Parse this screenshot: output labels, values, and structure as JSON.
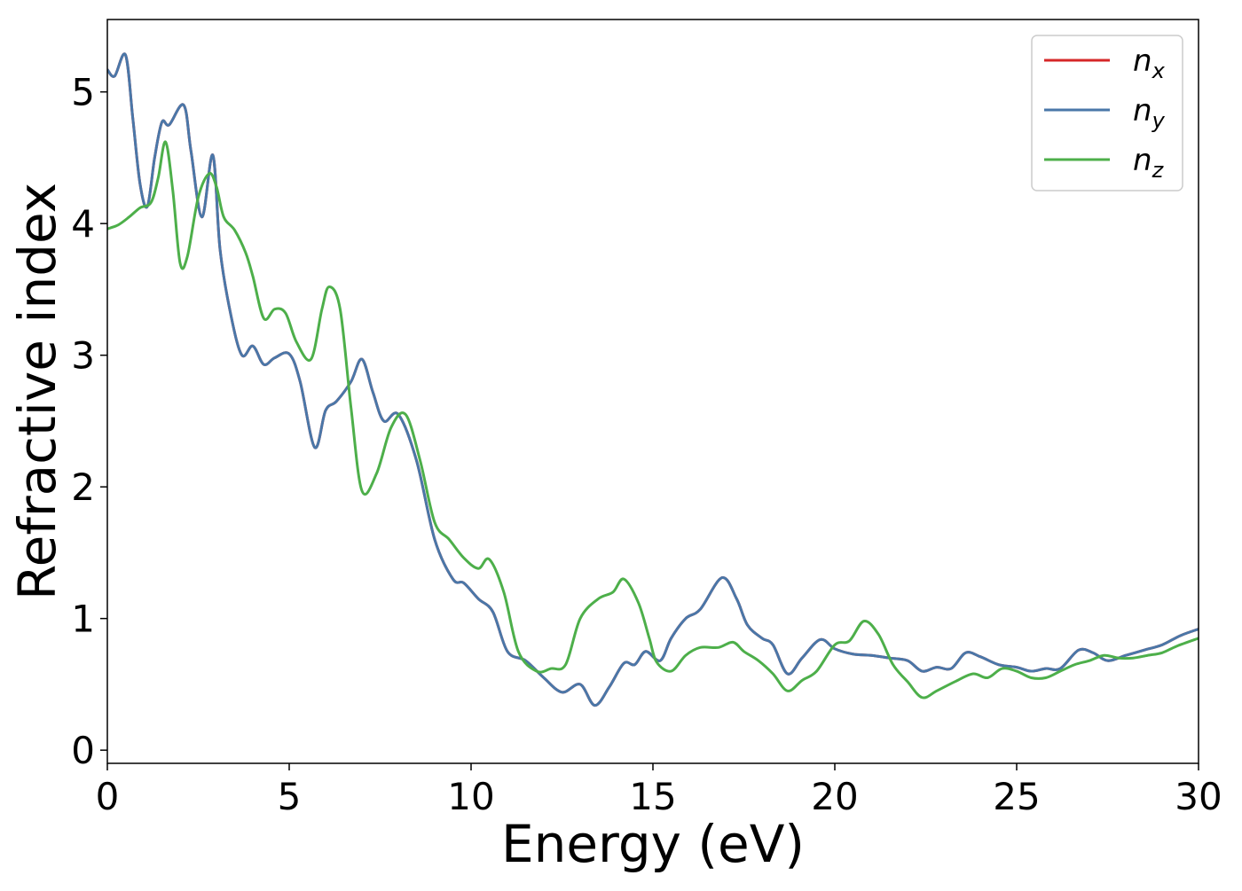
{
  "chart_data": {
    "type": "line",
    "title": "",
    "xlabel": "Energy (eV)",
    "ylabel": "Refractive index",
    "xlim": [
      0,
      30
    ],
    "ylim": [
      -0.1,
      5.55
    ],
    "xticks": [
      0,
      5,
      10,
      15,
      20,
      25,
      30
    ],
    "xtick_labels": [
      "0",
      "5",
      "10",
      "15",
      "20",
      "25",
      "30"
    ],
    "yticks": [
      0,
      1,
      2,
      3,
      4,
      5
    ],
    "ytick_labels": [
      "0",
      "1",
      "2",
      "3",
      "4",
      "5"
    ],
    "grid": false,
    "legend_position": "top-right",
    "series": [
      {
        "name": "n",
        "subscript": "x",
        "color": "#d62728",
        "x": [
          0,
          0.2,
          0.5,
          0.7,
          0.9,
          1.1,
          1.3,
          1.5,
          1.7,
          2.1,
          2.3,
          2.6,
          2.9,
          3.1,
          3.4,
          3.7,
          4.0,
          4.3,
          4.6,
          5.0,
          5.3,
          5.7,
          6.0,
          6.3,
          6.7,
          7.0,
          7.3,
          7.6,
          8.0,
          8.5,
          9.0,
          9.5,
          9.8,
          10.2,
          10.6,
          11.0,
          11.5,
          12.0,
          12.5,
          13.0,
          13.4,
          13.8,
          14.2,
          14.5,
          14.8,
          15.2,
          15.5,
          15.9,
          16.3,
          16.9,
          17.3,
          17.6,
          18.0,
          18.3,
          18.7,
          19.1,
          19.6,
          20.0,
          20.5,
          21.0,
          21.5,
          22.0,
          22.4,
          22.8,
          23.2,
          23.6,
          24.0,
          24.5,
          25.0,
          25.4,
          25.8,
          26.2,
          26.7,
          27.1,
          27.5,
          28.0,
          28.5,
          29.0,
          29.5,
          30.0
        ],
        "values": [
          5.17,
          5.12,
          5.28,
          4.8,
          4.3,
          4.13,
          4.5,
          4.77,
          4.75,
          4.9,
          4.55,
          4.05,
          4.52,
          3.8,
          3.3,
          3.0,
          3.07,
          2.93,
          2.98,
          3.01,
          2.8,
          2.3,
          2.58,
          2.65,
          2.8,
          2.97,
          2.72,
          2.5,
          2.55,
          2.2,
          1.6,
          1.3,
          1.27,
          1.15,
          1.05,
          0.75,
          0.68,
          0.55,
          0.44,
          0.5,
          0.34,
          0.48,
          0.66,
          0.65,
          0.75,
          0.68,
          0.85,
          1.0,
          1.07,
          1.31,
          1.15,
          0.95,
          0.85,
          0.8,
          0.58,
          0.7,
          0.84,
          0.77,
          0.73,
          0.72,
          0.7,
          0.68,
          0.6,
          0.63,
          0.62,
          0.74,
          0.71,
          0.65,
          0.63,
          0.6,
          0.62,
          0.62,
          0.76,
          0.74,
          0.68,
          0.72,
          0.76,
          0.8,
          0.87,
          0.92
        ]
      },
      {
        "name": "n",
        "subscript": "y",
        "color": "#4a77a8",
        "x": [
          0,
          0.2,
          0.5,
          0.7,
          0.9,
          1.1,
          1.3,
          1.5,
          1.7,
          2.1,
          2.3,
          2.6,
          2.9,
          3.1,
          3.4,
          3.7,
          4.0,
          4.3,
          4.6,
          5.0,
          5.3,
          5.7,
          6.0,
          6.3,
          6.7,
          7.0,
          7.3,
          7.6,
          8.0,
          8.5,
          9.0,
          9.5,
          9.8,
          10.2,
          10.6,
          11.0,
          11.5,
          12.0,
          12.5,
          13.0,
          13.4,
          13.8,
          14.2,
          14.5,
          14.8,
          15.2,
          15.5,
          15.9,
          16.3,
          16.9,
          17.3,
          17.6,
          18.0,
          18.3,
          18.7,
          19.1,
          19.6,
          20.0,
          20.5,
          21.0,
          21.5,
          22.0,
          22.4,
          22.8,
          23.2,
          23.6,
          24.0,
          24.5,
          25.0,
          25.4,
          25.8,
          26.2,
          26.7,
          27.1,
          27.5,
          28.0,
          28.5,
          29.0,
          29.5,
          30.0
        ],
        "values": [
          5.17,
          5.12,
          5.28,
          4.8,
          4.3,
          4.13,
          4.5,
          4.77,
          4.75,
          4.9,
          4.55,
          4.05,
          4.52,
          3.8,
          3.3,
          3.0,
          3.07,
          2.93,
          2.98,
          3.01,
          2.8,
          2.3,
          2.58,
          2.65,
          2.8,
          2.97,
          2.72,
          2.5,
          2.55,
          2.2,
          1.6,
          1.3,
          1.27,
          1.15,
          1.05,
          0.75,
          0.68,
          0.55,
          0.44,
          0.5,
          0.34,
          0.48,
          0.66,
          0.65,
          0.75,
          0.68,
          0.85,
          1.0,
          1.07,
          1.31,
          1.15,
          0.95,
          0.85,
          0.8,
          0.58,
          0.7,
          0.84,
          0.77,
          0.73,
          0.72,
          0.7,
          0.68,
          0.6,
          0.63,
          0.62,
          0.74,
          0.71,
          0.65,
          0.63,
          0.6,
          0.62,
          0.62,
          0.76,
          0.74,
          0.68,
          0.72,
          0.76,
          0.8,
          0.87,
          0.92
        ]
      },
      {
        "name": "n",
        "subscript": "z",
        "color": "#4daf4a",
        "x": [
          0,
          0.3,
          0.6,
          0.9,
          1.2,
          1.4,
          1.6,
          1.8,
          2.0,
          2.2,
          2.5,
          2.8,
          3.0,
          3.2,
          3.5,
          3.8,
          4.0,
          4.3,
          4.6,
          4.9,
          5.2,
          5.6,
          5.9,
          6.1,
          6.4,
          6.7,
          7.0,
          7.4,
          7.8,
          8.2,
          8.6,
          9.0,
          9.4,
          9.8,
          10.2,
          10.5,
          10.9,
          11.3,
          11.8,
          12.2,
          12.6,
          13.0,
          13.5,
          13.9,
          14.2,
          14.6,
          14.9,
          15.1,
          15.5,
          15.9,
          16.3,
          16.8,
          17.2,
          17.5,
          17.9,
          18.3,
          18.7,
          19.1,
          19.5,
          20.0,
          20.4,
          20.8,
          21.2,
          21.6,
          22.0,
          22.4,
          22.8,
          23.3,
          23.8,
          24.2,
          24.6,
          25.0,
          25.4,
          25.8,
          26.2,
          26.6,
          27.0,
          27.4,
          27.8,
          28.2,
          28.6,
          29.0,
          29.4,
          30.0
        ],
        "values": [
          3.96,
          3.99,
          4.05,
          4.12,
          4.16,
          4.35,
          4.62,
          4.25,
          3.7,
          3.75,
          4.2,
          4.38,
          4.28,
          4.05,
          3.95,
          3.78,
          3.6,
          3.28,
          3.35,
          3.32,
          3.1,
          2.97,
          3.35,
          3.52,
          3.35,
          2.6,
          1.97,
          2.1,
          2.45,
          2.55,
          2.2,
          1.73,
          1.6,
          1.46,
          1.38,
          1.45,
          1.2,
          0.75,
          0.6,
          0.62,
          0.65,
          1.0,
          1.15,
          1.2,
          1.3,
          1.12,
          0.85,
          0.67,
          0.6,
          0.72,
          0.78,
          0.78,
          0.82,
          0.75,
          0.68,
          0.58,
          0.45,
          0.53,
          0.6,
          0.8,
          0.83,
          0.98,
          0.88,
          0.65,
          0.52,
          0.4,
          0.45,
          0.52,
          0.58,
          0.55,
          0.62,
          0.6,
          0.55,
          0.55,
          0.6,
          0.65,
          0.68,
          0.72,
          0.7,
          0.7,
          0.72,
          0.74,
          0.79,
          0.85
        ]
      }
    ]
  }
}
